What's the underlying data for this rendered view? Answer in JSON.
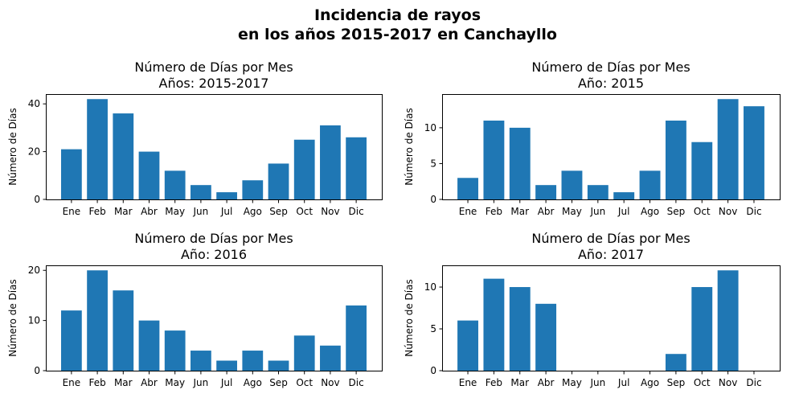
{
  "figure": {
    "title_line1": "Incidencia de rayos",
    "title_line2": "en los años 2015-2017 en Canchayllo"
  },
  "chart_data": [
    {
      "type": "bar",
      "title_line1": "Número de Días por Mes",
      "title_line2": "Años: 2015-2017",
      "ylabel": "Número de Días",
      "categories": [
        "Ene",
        "Feb",
        "Mar",
        "Abr",
        "May",
        "Jun",
        "Jul",
        "Ago",
        "Sep",
        "Oct",
        "Nov",
        "Dic"
      ],
      "values": [
        21,
        42,
        36,
        20,
        12,
        6,
        3,
        8,
        15,
        25,
        31,
        26
      ],
      "ylim": [
        0,
        44.1
      ],
      "yticks": [
        0,
        20,
        40
      ],
      "color": "#1f77b4"
    },
    {
      "type": "bar",
      "title_line1": "Número de Días por Mes",
      "title_line2": "Año: 2015",
      "ylabel": "Número de Días",
      "categories": [
        "Ene",
        "Feb",
        "Mar",
        "Abr",
        "May",
        "Jun",
        "Jul",
        "Ago",
        "Sep",
        "Oct",
        "Nov",
        "Dic"
      ],
      "values": [
        3,
        11,
        10,
        2,
        4,
        2,
        1,
        4,
        11,
        8,
        14,
        13
      ],
      "ylim": [
        0,
        14.7
      ],
      "yticks": [
        0,
        5,
        10
      ],
      "color": "#1f77b4"
    },
    {
      "type": "bar",
      "title_line1": "Número de Días por Mes",
      "title_line2": "Año: 2016",
      "ylabel": "Número de Días",
      "categories": [
        "Ene",
        "Feb",
        "Mar",
        "Abr",
        "May",
        "Jun",
        "Jul",
        "Ago",
        "Sep",
        "Oct",
        "Nov",
        "Dic"
      ],
      "values": [
        12,
        20,
        16,
        10,
        8,
        4,
        2,
        4,
        2,
        7,
        5,
        13
      ],
      "ylim": [
        0,
        21
      ],
      "yticks": [
        0,
        10,
        20
      ],
      "color": "#1f77b4"
    },
    {
      "type": "bar",
      "title_line1": "Número de Días por Mes",
      "title_line2": "Año: 2017",
      "ylabel": "Número de Días",
      "categories": [
        "Ene",
        "Feb",
        "Mar",
        "Abr",
        "May",
        "Jun",
        "Jul",
        "Ago",
        "Sep",
        "Oct",
        "Nov",
        "Dic"
      ],
      "values": [
        6,
        11,
        10,
        8,
        0,
        0,
        0,
        0,
        2,
        10,
        12,
        null
      ],
      "ylim": [
        0,
        12.6
      ],
      "yticks": [
        0,
        5,
        10
      ],
      "color": "#1f77b4"
    }
  ]
}
